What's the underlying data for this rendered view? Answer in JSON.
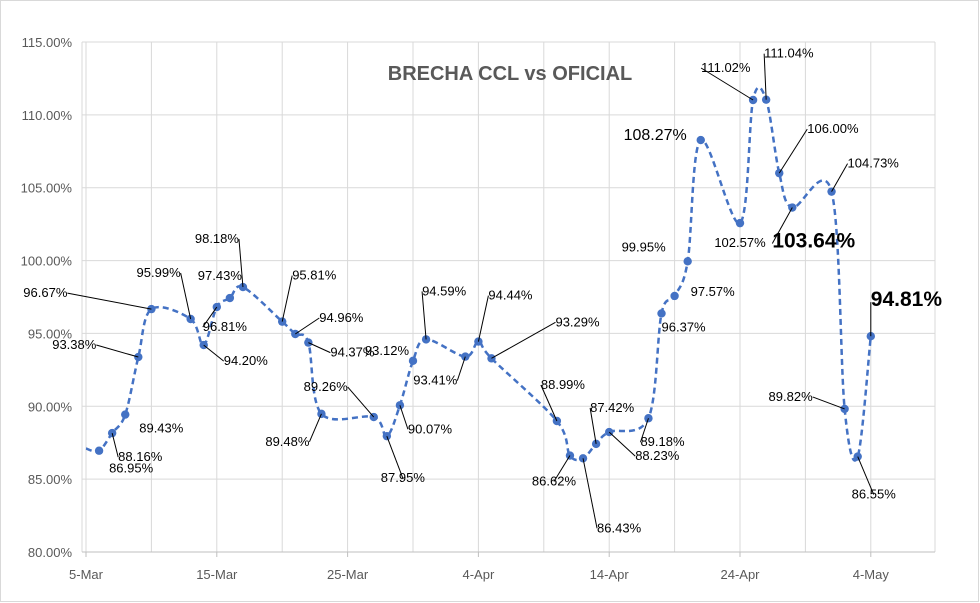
{
  "chart_data": {
    "type": "line",
    "title": "BRECHA CCL vs OFICIAL",
    "xlabel": "",
    "ylabel": "",
    "ylim": [
      80,
      115
    ],
    "y_ticks": [
      "80.00%",
      "85.00%",
      "90.00%",
      "95.00%",
      "100.00%",
      "105.00%",
      "110.00%",
      "115.00%"
    ],
    "x_ticks": [
      {
        "day": 0,
        "label": "5-Mar"
      },
      {
        "day": 10,
        "label": "15-Mar"
      },
      {
        "day": 20,
        "label": "25-Mar"
      },
      {
        "day": 30,
        "label": "4-Apr"
      },
      {
        "day": 40,
        "label": "14-Apr"
      },
      {
        "day": 50,
        "label": "24-Apr"
      },
      {
        "day": 60,
        "label": "4-May"
      }
    ],
    "grid": true,
    "legend": "none",
    "series": [
      {
        "color": "#4472c4",
        "style": "dashed-smooth",
        "points": [
          {
            "x": 1,
            "y": 86.95,
            "label": "86.95%"
          },
          {
            "x": 2,
            "y": 88.16,
            "label": "88.16%"
          },
          {
            "x": 3,
            "y": 89.43,
            "label": "89.43%"
          },
          {
            "x": 4,
            "y": 93.38,
            "label": "93.38%"
          },
          {
            "x": 5,
            "y": 96.67,
            "label": "96.67%"
          },
          {
            "x": 8,
            "y": 95.99,
            "label": "95.99%"
          },
          {
            "x": 9,
            "y": 94.2,
            "label": "94.20%"
          },
          {
            "x": 10,
            "y": 96.81,
            "label": "96.81%"
          },
          {
            "x": 11,
            "y": 97.43,
            "label": "97.43%"
          },
          {
            "x": 12,
            "y": 98.18,
            "label": "98.18%"
          },
          {
            "x": 15,
            "y": 95.81,
            "label": "95.81%"
          },
          {
            "x": 16,
            "y": 94.96,
            "label": "94.96%"
          },
          {
            "x": 17,
            "y": 94.37,
            "label": "94.37%"
          },
          {
            "x": 18,
            "y": 89.48,
            "label": "89.48%"
          },
          {
            "x": 22,
            "y": 89.26,
            "label": "89.26%"
          },
          {
            "x": 23,
            "y": 87.95,
            "label": "87.95%"
          },
          {
            "x": 24,
            "y": 90.07,
            "label": "90.07%"
          },
          {
            "x": 25,
            "y": 93.12,
            "label": "93.12%"
          },
          {
            "x": 26,
            "y": 94.59,
            "label": "94.59%"
          },
          {
            "x": 29,
            "y": 93.41,
            "label": "93.41%"
          },
          {
            "x": 30,
            "y": 94.44,
            "label": "94.44%"
          },
          {
            "x": 31,
            "y": 93.29,
            "label": "93.29%"
          },
          {
            "x": 36,
            "y": 88.99,
            "label": "88.99%"
          },
          {
            "x": 37,
            "y": 86.62,
            "label": "86.62%"
          },
          {
            "x": 38,
            "y": 86.43,
            "label": "86.43%"
          },
          {
            "x": 39,
            "y": 87.42,
            "label": "87.42%"
          },
          {
            "x": 40,
            "y": 88.23,
            "label": "88.23%"
          },
          {
            "x": 43,
            "y": 89.18,
            "label": "89.18%"
          },
          {
            "x": 44,
            "y": 96.37,
            "label": "96.37%"
          },
          {
            "x": 45,
            "y": 97.57,
            "label": "97.57%"
          },
          {
            "x": 46,
            "y": 99.95,
            "label": "99.95%"
          },
          {
            "x": 47,
            "y": 108.27,
            "label": "108.27%"
          },
          {
            "x": 50,
            "y": 102.57,
            "label": "102.57%"
          },
          {
            "x": 51,
            "y": 111.02,
            "label": "111.02%"
          },
          {
            "x": 52,
            "y": 111.04,
            "label": "111.04%"
          },
          {
            "x": 53,
            "y": 106.0,
            "label": "106.00%"
          },
          {
            "x": 54,
            "y": 103.64,
            "label": "103.64%"
          },
          {
            "x": 57,
            "y": 104.73,
            "label": "104.73%"
          },
          {
            "x": 58,
            "y": 89.82,
            "label": "89.82%"
          },
          {
            "x": 59,
            "y": 86.55,
            "label": "86.55%"
          },
          {
            "x": 60,
            "y": 94.81,
            "label": "94.81%"
          }
        ]
      }
    ]
  }
}
